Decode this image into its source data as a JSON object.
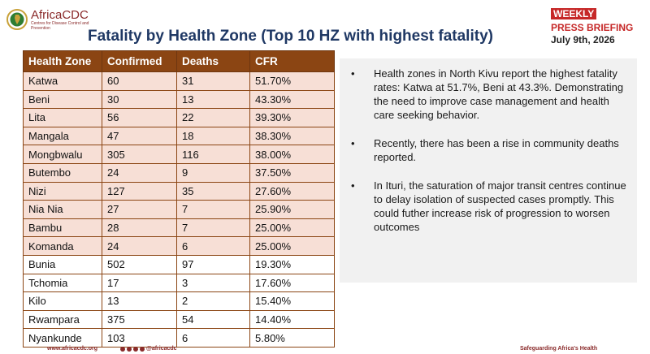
{
  "header": {
    "logo_name": "AfricaCDC",
    "logo_subtitle": "Centres for Disease Control and Prevention",
    "weekly": "WEEKLY",
    "press": "PRESS BRIEFING",
    "date": "July 9th, 2026"
  },
  "slide_title": "Fatality by Health Zone (Top 10 HZ with highest fatality)",
  "table": {
    "headers": [
      "Health Zone",
      "Confirmed",
      "Deaths",
      "CFR"
    ],
    "rows": [
      [
        "Katwa",
        "60",
        "31",
        "51.70%"
      ],
      [
        "Beni",
        "30",
        "13",
        "43.30%"
      ],
      [
        "Lita",
        "56",
        "22",
        "39.30%"
      ],
      [
        "Mangala",
        "47",
        "18",
        "38.30%"
      ],
      [
        "Mongbwalu",
        "305",
        "116",
        "38.00%"
      ],
      [
        "Butembo",
        "24",
        "9",
        "37.50%"
      ],
      [
        "Nizi",
        "127",
        "35",
        "27.60%"
      ],
      [
        "Nia Nia",
        "27",
        "7",
        "25.90%"
      ],
      [
        "Bambu",
        "28",
        "7",
        "25.00%"
      ],
      [
        "Komanda",
        "24",
        "6",
        "25.00%"
      ],
      [
        "Bunia",
        "502",
        "97",
        "19.30%"
      ],
      [
        "Tchomia",
        "17",
        "3",
        "17.60%"
      ],
      [
        "Kilo",
        "13",
        "2",
        "15.40%"
      ],
      [
        "Rwampara",
        "375",
        "54",
        "14.40%"
      ],
      [
        "Nyankunde",
        "103",
        "6",
        "5.80%"
      ]
    ],
    "highlight_color": "#f7dfd6",
    "header_color": "#8b4513"
  },
  "notes": [
    "Health zones in North Kivu report the highest fatality rates:  Katwa at 51.7%, Beni at 43.3%. Demonstrating the need to improve case management and health care seeking behavior.",
    "Recently, there has been a rise in community deaths reported.",
    "In Ituri, the saturation of major transit centres continue to delay isolation of suspected cases promptly. This could futher increase risk of progression to worsen outcomes"
  ],
  "footer": {
    "website": "www.africacdc.org",
    "social": "@africacdc",
    "tagline": "Safeguarding Africa's Health"
  }
}
